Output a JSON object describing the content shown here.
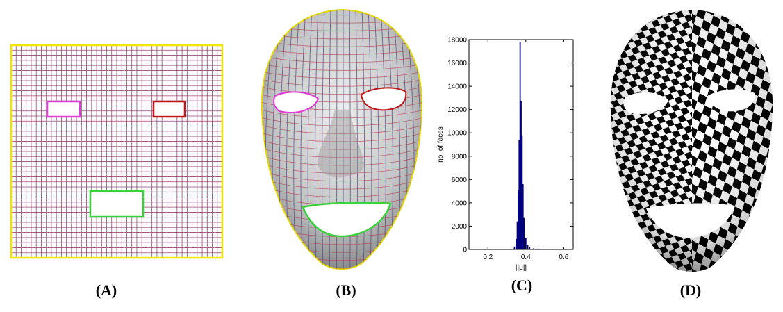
{
  "captions": {
    "a": "(A)",
    "b": "(B)",
    "c": "(C)",
    "d": "(D)"
  },
  "colors": {
    "grid_line": "#8e4a78",
    "grid_border": "#f2e600",
    "left_eye_hole": "#e23ad8",
    "right_eye_hole": "#c01818",
    "mouth_hole": "#38d23a",
    "face_surface": "#c9c9c9",
    "histogram_bar": "#00007f"
  },
  "chart_data": {
    "type": "bar",
    "xlabel": "||μ||",
    "ylabel": "no. of faces",
    "xlim": [
      0.1,
      0.65
    ],
    "ylim": [
      0,
      18000
    ],
    "xticks": [
      "0.2",
      "0.4",
      "0.6"
    ],
    "yticks": [
      "0",
      "2000",
      "4000",
      "6000",
      "8000",
      "10000",
      "12000",
      "14000",
      "16000",
      "18000"
    ],
    "x": [
      0.33,
      0.34,
      0.35,
      0.355,
      0.36,
      0.365,
      0.37,
      0.375,
      0.38,
      0.385,
      0.39,
      0.4,
      0.41,
      0.42,
      0.44,
      0.47,
      0.5,
      0.55
    ],
    "values": [
      60,
      250,
      900,
      2400,
      5100,
      9400,
      17800,
      12700,
      9800,
      5600,
      2700,
      1000,
      400,
      180,
      90,
      60,
      40,
      20
    ],
    "grid": false
  }
}
